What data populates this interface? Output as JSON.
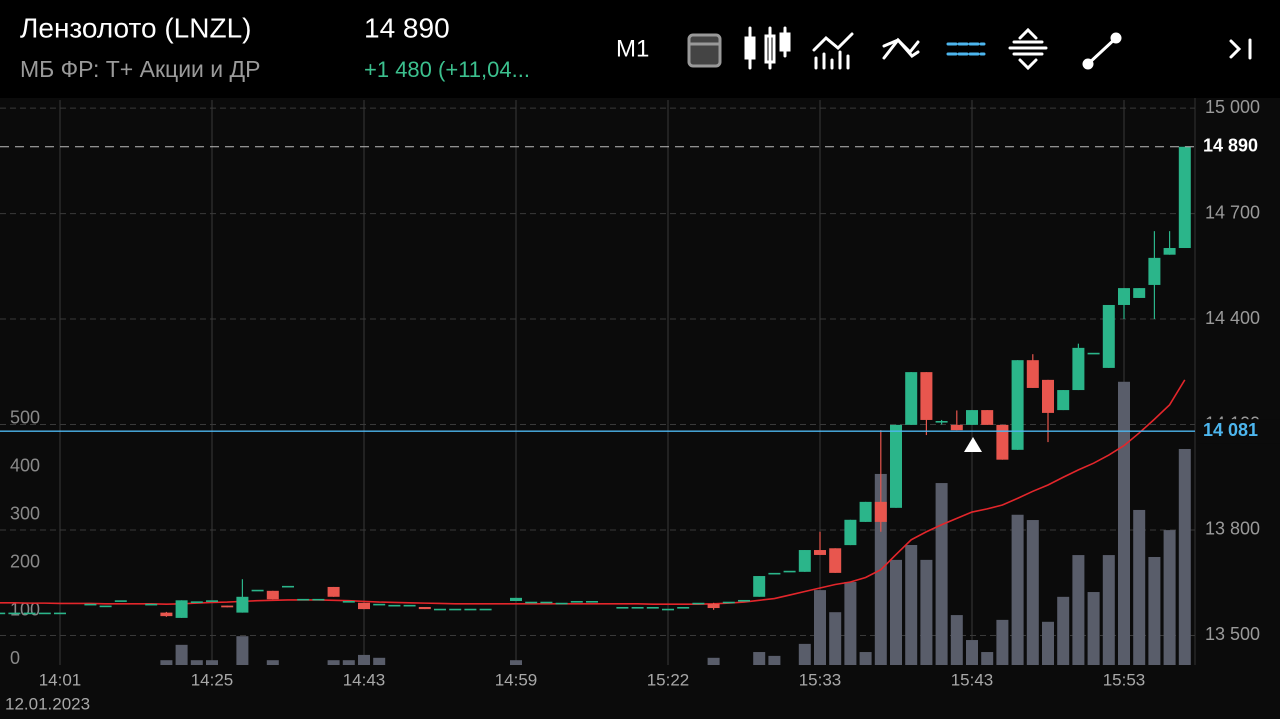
{
  "header": {
    "title": "Лензолото (LNZL)",
    "exchange": "МБ ФР: Т+ Акции и ДР",
    "price": "14 890",
    "change": "+1 480 (+11,04..."
  },
  "toolbar": {
    "timeframe": "M1"
  },
  "chart_data": {
    "type": "candlestick",
    "date": "12.01.2023",
    "categories": [
      null,
      null,
      null,
      null,
      "14:01",
      null,
      null,
      null,
      null,
      null,
      null,
      null,
      null,
      null,
      "14:25",
      null,
      null,
      null,
      null,
      null,
      null,
      null,
      null,
      null,
      "14:43",
      null,
      null,
      null,
      null,
      null,
      null,
      null,
      null,
      null,
      "14:59",
      null,
      null,
      null,
      null,
      null,
      null,
      null,
      null,
      null,
      "15:22",
      null,
      null,
      null,
      null,
      null,
      null,
      null,
      null,
      null,
      "15:33",
      null,
      null,
      null,
      null,
      null,
      null,
      null,
      null,
      null,
      "15:43",
      null,
      null,
      null,
      null,
      null,
      null,
      null,
      null,
      null,
      "15:53",
      null,
      null,
      null,
      null
    ],
    "open": [
      13565,
      13565,
      13565,
      13565,
      13565,
      null,
      13590,
      13585,
      13600,
      null,
      13590,
      13565,
      13550,
      13597,
      13600,
      13585,
      13565,
      13630,
      13627,
      13641,
      13604,
      13604,
      13638,
      13598,
      13593,
      13590,
      13587,
      13587,
      13581,
      13576,
      13576,
      13576,
      13576,
      null,
      13598,
      13596,
      13596,
      13593,
      13598,
      13598,
      null,
      13581,
      13581,
      13581,
      13576,
      13581,
      13593,
      13590,
      13596,
      13601,
      13610,
      13678,
      13684,
      13681,
      13743,
      13748,
      13757,
      13823,
      13880,
      13863,
      14099,
      14249,
      14110,
      14099,
      14099,
      14141,
      14099,
      14028,
      14283,
      14227,
      14141,
      14198,
      14304,
      14261,
      14440,
      14460,
      14497,
      14583,
      14602
    ],
    "high": [
      13565,
      13565,
      13565,
      13565,
      13565,
      null,
      13590,
      13585,
      13600,
      null,
      13590,
      13567,
      13600,
      13597,
      13600,
      13585,
      13660,
      13630,
      13627,
      13641,
      13604,
      13604,
      13638,
      13598,
      13593,
      13590,
      13587,
      13587,
      13581,
      13576,
      13576,
      13576,
      13576,
      null,
      13607,
      13596,
      13596,
      13593,
      13598,
      13598,
      null,
      13581,
      13581,
      13581,
      13576,
      13581,
      13593,
      13593,
      13596,
      13601,
      13669,
      13678,
      13684,
      13743,
      13795,
      13748,
      13829,
      13880,
      14084,
      14099,
      14249,
      14249,
      14113,
      14140,
      14141,
      14141,
      14099,
      14283,
      14300,
      14227,
      14198,
      14330,
      14304,
      14440,
      14488,
      14488,
      14650,
      14650,
      14890
    ],
    "low": [
      13565,
      13565,
      13565,
      13565,
      13565,
      null,
      13590,
      13585,
      13600,
      null,
      13590,
      13553,
      13550,
      13597,
      13600,
      13580,
      13565,
      13630,
      13603,
      13641,
      13604,
      13604,
      13610,
      13598,
      13575,
      13590,
      13587,
      13587,
      13575,
      13576,
      13576,
      13576,
      13576,
      null,
      13598,
      13596,
      13596,
      13593,
      13598,
      13598,
      null,
      13581,
      13581,
      13581,
      13576,
      13581,
      13593,
      13573,
      13596,
      13601,
      13610,
      13678,
      13684,
      13681,
      13729,
      13678,
      13757,
      13823,
      13795,
      13863,
      14099,
      14070,
      14100,
      14084,
      14099,
      14099,
      14000,
      14028,
      14204,
      14050,
      14141,
      14198,
      14304,
      14261,
      14400,
      14460,
      14400,
      14583,
      14602
    ],
    "close": [
      13565,
      13565,
      13565,
      13565,
      13565,
      null,
      13590,
      13585,
      13600,
      null,
      13590,
      13555,
      13600,
      13597,
      13600,
      13580,
      13610,
      13630,
      13603,
      13641,
      13604,
      13604,
      13610,
      13598,
      13575,
      13590,
      13587,
      13587,
      13575,
      13576,
      13576,
      13576,
      13576,
      null,
      13607,
      13596,
      13596,
      13593,
      13598,
      13598,
      null,
      13581,
      13581,
      13581,
      13576,
      13581,
      13593,
      13578,
      13596,
      13601,
      13669,
      13678,
      13684,
      13743,
      13729,
      13678,
      13829,
      13880,
      13823,
      14099,
      14249,
      14113,
      14110,
      14084,
      14141,
      14099,
      14000,
      14283,
      14204,
      14133,
      14198,
      14318,
      14304,
      14440,
      14488,
      14488,
      14574,
      14602,
      14890
    ],
    "volume": [
      null,
      null,
      null,
      null,
      null,
      null,
      null,
      null,
      null,
      null,
      null,
      10,
      42,
      10,
      10,
      null,
      60,
      null,
      10,
      null,
      null,
      null,
      10,
      10,
      21,
      15,
      null,
      null,
      null,
      null,
      null,
      null,
      null,
      null,
      10,
      null,
      null,
      null,
      null,
      null,
      null,
      null,
      null,
      null,
      null,
      null,
      null,
      15,
      null,
      null,
      27,
      19,
      null,
      44,
      156,
      110,
      173,
      27,
      398,
      219,
      250,
      219,
      379,
      104,
      52,
      27,
      94,
      313,
      302,
      90,
      142,
      229,
      152,
      229,
      590,
      323,
      225,
      281,
      450
    ],
    "moving_average": {
      "color": "#e3262b",
      "values": [
        13593,
        13593,
        13592,
        13592,
        13591,
        13591,
        13591,
        13590,
        13590,
        13590,
        13590,
        13589,
        13590,
        13592,
        13594,
        13595,
        13597,
        13599,
        13600,
        13601,
        13601,
        13601,
        13600,
        13599,
        13597,
        13595,
        13594,
        13593,
        13592,
        13591,
        13590,
        13590,
        13590,
        13590,
        13590,
        13590,
        13590,
        13590,
        13590,
        13590,
        13590,
        13590,
        13590,
        13589,
        13589,
        13589,
        13589,
        13590,
        13592,
        13595,
        13600,
        13605,
        13615,
        13625,
        13635,
        13645,
        13652,
        13665,
        13687,
        13730,
        13772,
        13795,
        13815,
        13833,
        13851,
        13860,
        13871,
        13890,
        13910,
        13928,
        13950,
        13971,
        13990,
        14013,
        14040,
        14076,
        14115,
        14156,
        14227
      ]
    },
    "up_color": "#2bb58a",
    "down_color": "#e8564e",
    "volume_color": "#595d6a",
    "ylim": [
      13416,
      15023
    ],
    "yticks": [
      {
        "value": 13500,
        "label": "13 500"
      },
      {
        "value": 13800,
        "label": "13 800"
      },
      {
        "value": 14100,
        "label": "14 100"
      },
      {
        "value": 14400,
        "label": "14 400"
      },
      {
        "value": 14700,
        "label": "14 700"
      },
      {
        "value": 15000,
        "label": "15 000"
      }
    ],
    "y2lim": [
      0,
      1177
    ],
    "y2ticks": [
      0,
      100,
      200,
      300,
      400,
      500
    ],
    "last_price": {
      "value": 14890,
      "label": "14 890"
    },
    "current_price": {
      "value": 14081,
      "label": "14 081",
      "color": "#4db6ee"
    },
    "grid": true
  }
}
